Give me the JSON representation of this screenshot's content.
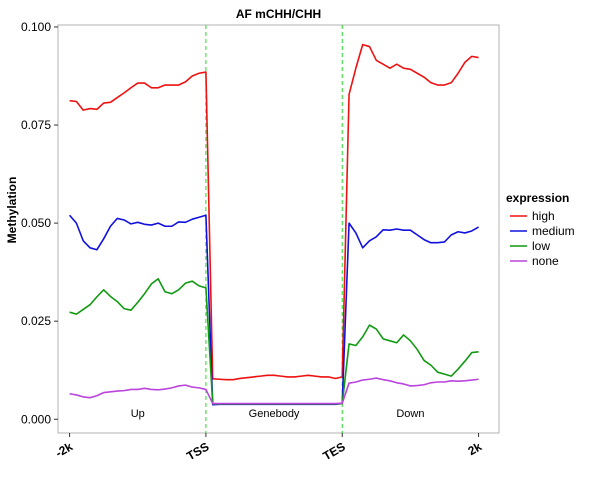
{
  "chart_data": {
    "type": "line",
    "title": "AF mCHH/CHH",
    "ylabel": "Methylation",
    "xlabel": "",
    "ylim": [
      -0.0035,
      0.1005
    ],
    "yticks": [
      0.0,
      0.025,
      0.05,
      0.075,
      0.1
    ],
    "ytick_labels": [
      "0.000",
      "0.025",
      "0.050",
      "0.075",
      "0.100"
    ],
    "xticks": [
      {
        "pos": 0,
        "label": "-2k"
      },
      {
        "pos": 20,
        "label": "TSS"
      },
      {
        "pos": 40,
        "label": "TES"
      },
      {
        "pos": 60,
        "label": "2k"
      }
    ],
    "xlim": [
      -1.7,
      63
    ],
    "vlines": [
      20,
      40
    ],
    "vline_color": "#22dd22",
    "region_labels": [
      {
        "pos": 10,
        "label": "Up"
      },
      {
        "pos": 30,
        "label": "Genebody"
      },
      {
        "pos": 50,
        "label": "Down"
      }
    ],
    "legend": {
      "title": "expression",
      "placement": "right"
    },
    "x": [
      0,
      1,
      2,
      3,
      4,
      5,
      6,
      7,
      8,
      9,
      10,
      11,
      12,
      13,
      14,
      15,
      16,
      17,
      18,
      19,
      20,
      21,
      22,
      23,
      24,
      25,
      26,
      27,
      28,
      29,
      30,
      31,
      32,
      33,
      34,
      35,
      36,
      37,
      38,
      39,
      40,
      41,
      42,
      43,
      44,
      45,
      46,
      47,
      48,
      49,
      50,
      51,
      52,
      53,
      54,
      55,
      56,
      57,
      58,
      59,
      60
    ],
    "series": [
      {
        "name": "high",
        "color": "#ee1111",
        "values": [
          0.0812,
          0.081,
          0.0788,
          0.0792,
          0.079,
          0.0806,
          0.0808,
          0.082,
          0.0832,
          0.0845,
          0.0857,
          0.0857,
          0.0845,
          0.0845,
          0.0852,
          0.0852,
          0.0852,
          0.086,
          0.0875,
          0.0882,
          0.0885,
          0.0103,
          0.0102,
          0.0101,
          0.0101,
          0.0104,
          0.0106,
          0.0108,
          0.011,
          0.0112,
          0.0112,
          0.011,
          0.0108,
          0.0108,
          0.011,
          0.0112,
          0.011,
          0.0108,
          0.0108,
          0.0104,
          0.0108,
          0.0828,
          0.0895,
          0.0955,
          0.095,
          0.0915,
          0.0905,
          0.0895,
          0.0905,
          0.0895,
          0.0892,
          0.0882,
          0.0872,
          0.0858,
          0.0852,
          0.0852,
          0.0858,
          0.0882,
          0.091,
          0.0925,
          0.0922
        ]
      },
      {
        "name": "medium",
        "color": "#1111dd",
        "values": [
          0.052,
          0.05,
          0.0455,
          0.0437,
          0.0432,
          0.046,
          0.0492,
          0.0512,
          0.0508,
          0.0498,
          0.0502,
          0.0497,
          0.0495,
          0.05,
          0.0492,
          0.0492,
          0.0503,
          0.0502,
          0.051,
          0.0515,
          0.052,
          0.0037,
          0.0038,
          0.0038,
          0.0038,
          0.0038,
          0.0038,
          0.0038,
          0.0038,
          0.0038,
          0.0038,
          0.0038,
          0.0038,
          0.0038,
          0.0038,
          0.0038,
          0.0038,
          0.0038,
          0.0038,
          0.0038,
          0.004,
          0.05,
          0.0475,
          0.0437,
          0.0455,
          0.0465,
          0.0483,
          0.0482,
          0.0485,
          0.0482,
          0.0482,
          0.047,
          0.0458,
          0.045,
          0.045,
          0.0452,
          0.047,
          0.0478,
          0.0475,
          0.048,
          0.049
        ]
      },
      {
        "name": "low",
        "color": "#119911",
        "values": [
          0.0273,
          0.0268,
          0.028,
          0.0292,
          0.0312,
          0.033,
          0.0313,
          0.03,
          0.0282,
          0.0278,
          0.0298,
          0.032,
          0.0345,
          0.0358,
          0.0325,
          0.032,
          0.033,
          0.0347,
          0.0352,
          0.034,
          0.0335,
          0.0039,
          0.0039,
          0.0039,
          0.0039,
          0.0039,
          0.0039,
          0.0039,
          0.0039,
          0.0039,
          0.0039,
          0.0039,
          0.0039,
          0.0039,
          0.0039,
          0.0039,
          0.0039,
          0.0039,
          0.0039,
          0.0039,
          0.004,
          0.0192,
          0.0188,
          0.021,
          0.024,
          0.023,
          0.0205,
          0.02,
          0.0195,
          0.0215,
          0.02,
          0.0178,
          0.015,
          0.0138,
          0.012,
          0.0115,
          0.011,
          0.0128,
          0.0148,
          0.017,
          0.0172
        ]
      },
      {
        "name": "none",
        "color": "#bb44dd",
        "values": [
          0.0065,
          0.0062,
          0.0057,
          0.0055,
          0.006,
          0.0068,
          0.007,
          0.0072,
          0.0073,
          0.0076,
          0.0076,
          0.0079,
          0.0076,
          0.0075,
          0.0077,
          0.008,
          0.0085,
          0.0087,
          0.0082,
          0.008,
          0.0076,
          0.004,
          0.004,
          0.004,
          0.004,
          0.004,
          0.004,
          0.004,
          0.004,
          0.004,
          0.004,
          0.004,
          0.004,
          0.004,
          0.004,
          0.004,
          0.004,
          0.004,
          0.004,
          0.004,
          0.0041,
          0.0092,
          0.0095,
          0.01,
          0.0102,
          0.0105,
          0.0101,
          0.0098,
          0.0093,
          0.009,
          0.0085,
          0.0086,
          0.0088,
          0.0093,
          0.0095,
          0.0095,
          0.0098,
          0.0097,
          0.0098,
          0.01,
          0.0102
        ]
      }
    ]
  }
}
